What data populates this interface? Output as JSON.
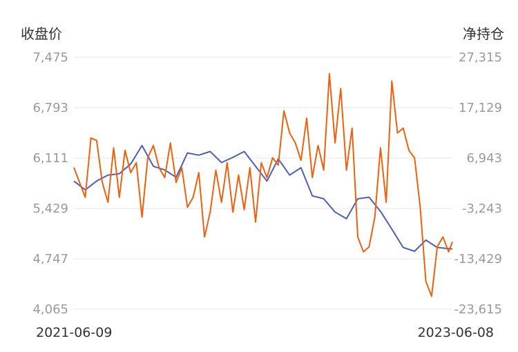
{
  "chart_data": {
    "type": "line",
    "y_left_label": "收盘价",
    "y_right_label": "净持仓",
    "y_left_ticks": [
      "7,475",
      "6,793",
      "6,111",
      "5,429",
      "4,747",
      "4,065"
    ],
    "y_right_ticks": [
      "27,315",
      "17,129",
      "6,943",
      "-3,243",
      "-13,429",
      "-23,615"
    ],
    "ylim_left": [
      4065,
      7475
    ],
    "ylim_right": [
      -23615,
      27315
    ],
    "x_ticks": [
      "2021-06-09",
      "2023-06-08"
    ],
    "grid": true,
    "colors": {
      "close_price": "#4a5fc1",
      "net_position": "#f25f0a"
    },
    "series": [
      {
        "key": "close_price",
        "axis": "left",
        "x": [
          0,
          0.03,
          0.06,
          0.09,
          0.12,
          0.15,
          0.18,
          0.21,
          0.24,
          0.27,
          0.3,
          0.33,
          0.36,
          0.39,
          0.42,
          0.45,
          0.48,
          0.51,
          0.54,
          0.57,
          0.6,
          0.63,
          0.66,
          0.69,
          0.72,
          0.75,
          0.78,
          0.81,
          0.84,
          0.87,
          0.9,
          0.93,
          0.96,
          1.0
        ],
        "values": [
          5800,
          5680,
          5800,
          5880,
          5900,
          6030,
          6280,
          6000,
          5950,
          5850,
          6180,
          6150,
          6200,
          6050,
          6120,
          6200,
          6000,
          5800,
          6100,
          5880,
          5980,
          5600,
          5560,
          5380,
          5290,
          5560,
          5580,
          5390,
          5150,
          4900,
          4850,
          5000,
          4900,
          4880
        ]
      },
      {
        "key": "net_position",
        "axis": "right",
        "x": [
          0,
          0.015,
          0.03,
          0.045,
          0.06,
          0.075,
          0.09,
          0.105,
          0.12,
          0.135,
          0.15,
          0.165,
          0.18,
          0.195,
          0.21,
          0.225,
          0.24,
          0.255,
          0.27,
          0.285,
          0.3,
          0.315,
          0.33,
          0.345,
          0.36,
          0.375,
          0.39,
          0.405,
          0.42,
          0.435,
          0.45,
          0.465,
          0.48,
          0.495,
          0.51,
          0.525,
          0.54,
          0.555,
          0.57,
          0.585,
          0.6,
          0.615,
          0.63,
          0.645,
          0.66,
          0.675,
          0.69,
          0.705,
          0.72,
          0.735,
          0.75,
          0.765,
          0.78,
          0.795,
          0.81,
          0.825,
          0.84,
          0.855,
          0.87,
          0.885,
          0.9,
          0.915,
          0.93,
          0.945,
          0.96,
          0.975,
          0.99,
          1.0
        ],
        "values": [
          5000,
          2000,
          -1000,
          11000,
          10500,
          2000,
          -2000,
          9000,
          -1000,
          8500,
          4000,
          6000,
          -5000,
          7000,
          9500,
          5000,
          3000,
          10000,
          2000,
          5000,
          -3000,
          -1000,
          4000,
          -9000,
          -4000,
          4500,
          -2000,
          6000,
          -4000,
          3500,
          -3500,
          5000,
          -6000,
          6000,
          3000,
          7000,
          5500,
          16500,
          12000,
          10000,
          6500,
          15000,
          3000,
          9500,
          4500,
          24000,
          10000,
          21000,
          4500,
          13000,
          -9000,
          -12000,
          -11000,
          -5000,
          9000,
          -2000,
          22500,
          12000,
          13000,
          8500,
          7000,
          -3000,
          -18000,
          -21000,
          -11000,
          -9000,
          -12000,
          -10000
        ]
      }
    ]
  }
}
